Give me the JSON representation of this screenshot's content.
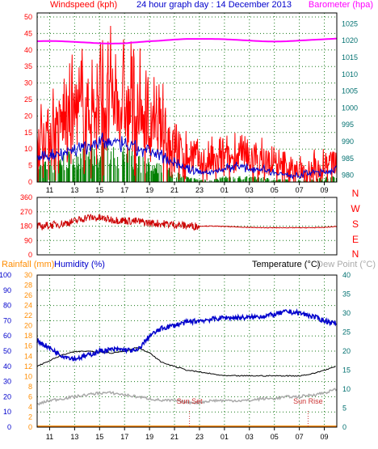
{
  "colors": {
    "bg": "#ffffff",
    "frame": "#000000",
    "grid": "#1a7a1a",
    "wind_speed": "#ff0000",
    "wind_avg": "#0000cc",
    "wind_low": "#008000",
    "barometer": "#ff00ff",
    "direction": "#cc0000",
    "rainfall": "#ff8c00",
    "humidity": "#0000cc",
    "temperature": "#000000",
    "dewpoint": "#aaaaaa",
    "sun_marker": "#cc3333",
    "left_axis_red": "#ff0000",
    "right_axis_magenta": "#ff00ff",
    "teal_axis": "#007070"
  },
  "chart_data": [
    {
      "type": "line",
      "title": "24 hour graph day : 14 December 2013",
      "left_axis_title": "Windspeed (kph)",
      "right_axis_title": "Barometer (hpa)",
      "y_left_ticks": [
        "0",
        "5",
        "10",
        "15",
        "20",
        "25",
        "30",
        "35",
        "40",
        "45",
        "50"
      ],
      "y_right_ticks": [
        "980",
        "985",
        "990",
        "995",
        "1000",
        "1005",
        "1010",
        "1015",
        "1020",
        "1025"
      ],
      "ylim_left": [
        0,
        50
      ],
      "ylim_right": [
        978,
        1027
      ],
      "x_ticks": [
        "11",
        "13",
        "15",
        "17",
        "19",
        "21",
        "23",
        "01",
        "03",
        "05",
        "07",
        "09"
      ],
      "series": [
        {
          "key": "gust",
          "x": [
            10,
            10.5,
            11,
            11.5,
            12,
            12.5,
            13,
            13.5,
            14,
            14.5,
            15,
            15.5,
            16,
            16.5,
            17,
            17.5,
            18,
            18.5,
            19,
            19.5,
            20,
            20.5,
            21,
            21.5,
            22,
            22.5,
            23,
            23.5,
            24,
            24.5,
            25,
            25.5,
            26,
            26.5,
            27,
            27.5,
            28,
            28.5,
            29,
            29.5,
            30,
            30.5,
            31,
            31.5,
            32,
            32.5,
            33,
            33.5,
            34
          ],
          "values": [
            14,
            13,
            16,
            17,
            18,
            18,
            20,
            21,
            22,
            21,
            23,
            24,
            24,
            23,
            22,
            22,
            21,
            19,
            17,
            16,
            15,
            13,
            10,
            9,
            8,
            7,
            6,
            5,
            6,
            6,
            7,
            7,
            8,
            7,
            6,
            7,
            6,
            5,
            5,
            4,
            4,
            3,
            3,
            4,
            5,
            4,
            5,
            6,
            6
          ]
        },
        {
          "key": "avg",
          "x": [
            10,
            11,
            12,
            13,
            14,
            15,
            16,
            17,
            18,
            19,
            20,
            21,
            22,
            23,
            24,
            25,
            26,
            27,
            28,
            29,
            30,
            31,
            32,
            33,
            34
          ],
          "values": [
            7,
            8,
            9,
            10,
            11,
            12,
            12,
            11,
            10,
            9,
            8,
            6,
            4,
            3,
            3,
            4,
            5,
            4,
            4,
            3,
            2,
            2,
            3,
            3,
            4
          ]
        },
        {
          "key": "low",
          "x": [
            10,
            11,
            12,
            13,
            14,
            15,
            16,
            17,
            18,
            19,
            20,
            21,
            22,
            23,
            24,
            25,
            26,
            27,
            28,
            29,
            30,
            31,
            32,
            33,
            34
          ],
          "values": [
            3,
            4,
            5,
            6,
            6,
            7,
            6,
            6,
            5,
            4,
            3,
            2,
            1,
            0.5,
            0.5,
            1,
            1,
            1,
            1,
            0.5,
            0.5,
            0.5,
            0.5,
            1,
            1
          ]
        },
        {
          "key": "barometer",
          "x": [
            10,
            11,
            12,
            13,
            14,
            15,
            16,
            17,
            18,
            19,
            20,
            21,
            22,
            23,
            24,
            25,
            26,
            27,
            28,
            29,
            30,
            31,
            32,
            33,
            34
          ],
          "values": [
            1019.8,
            1019.9,
            1019.8,
            1019.6,
            1019.4,
            1019.2,
            1019.1,
            1019.2,
            1019.5,
            1019.8,
            1020,
            1020.3,
            1020.5,
            1020.5,
            1020.5,
            1020.4,
            1020.2,
            1020,
            1019.8,
            1019.7,
            1019.8,
            1020,
            1020.2,
            1020.4,
            1020.6
          ]
        }
      ]
    },
    {
      "type": "line",
      "right_labels": [
        "N",
        "W",
        "S",
        "E",
        "N"
      ],
      "y_left_ticks": [
        "360",
        "270",
        "180",
        "90",
        "0"
      ],
      "ylim": [
        0,
        360
      ],
      "x_ticks": [
        "11",
        "13",
        "15",
        "17",
        "19",
        "21",
        "23",
        "01",
        "03",
        "05",
        "07",
        "09"
      ],
      "series": [
        {
          "key": "direction",
          "x": [
            10,
            11,
            12,
            13,
            14,
            15,
            16,
            17,
            18,
            19,
            20,
            21,
            22,
            23,
            24,
            25,
            26,
            27,
            28,
            29,
            30,
            31,
            32,
            33,
            34
          ],
          "values": [
            175,
            185,
            195,
            210,
            235,
            230,
            220,
            215,
            210,
            200,
            195,
            190,
            182,
            180,
            180,
            178,
            175,
            172,
            170,
            170,
            170,
            170,
            170,
            172,
            178
          ]
        }
      ]
    },
    {
      "type": "line",
      "rainfall_title": "Rainfall (mm)",
      "humidity_title": "Humidity (%)",
      "temperature_title": "Temperature (°C)",
      "dewpoint_title": "Dew Point (°C)",
      "y_humidity_ticks": [
        "0",
        "10",
        "20",
        "30",
        "40",
        "50",
        "60",
        "70",
        "80",
        "90",
        "100"
      ],
      "y_rain_ticks": [
        "0",
        "2",
        "4",
        "6",
        "8",
        "10",
        "12",
        "14",
        "16",
        "18",
        "20",
        "22",
        "24",
        "26",
        "28",
        "30"
      ],
      "y_temp_ticks": [
        "0",
        "5",
        "10",
        "15",
        "20",
        "25",
        "30",
        "35",
        "40"
      ],
      "ylim_humidity": [
        0,
        100
      ],
      "ylim_temp": [
        0,
        40
      ],
      "x_ticks": [
        "11",
        "13",
        "15",
        "17",
        "19",
        "21",
        "23",
        "01",
        "03",
        "05",
        "07",
        "09"
      ],
      "annotations": {
        "sunset": "Sun Set",
        "sunrise": "Sun Rise",
        "sunset_x": 22.2,
        "sunrise_x": 31.7
      },
      "series": [
        {
          "key": "humidity",
          "x": [
            10,
            11,
            12,
            13,
            14,
            15,
            16,
            17,
            18,
            19,
            20,
            21,
            22,
            23,
            24,
            25,
            26,
            27,
            28,
            29,
            30,
            31,
            32,
            33,
            34
          ],
          "values": [
            57,
            52,
            47,
            45,
            47,
            50,
            51,
            51,
            50,
            60,
            65,
            67,
            69,
            70,
            71,
            72,
            72,
            72,
            73,
            74,
            76,
            75,
            73,
            70,
            68
          ]
        },
        {
          "key": "temperature",
          "x": [
            10,
            11,
            12,
            13,
            14,
            15,
            16,
            17,
            18,
            19,
            20,
            21,
            22,
            23,
            24,
            25,
            26,
            27,
            28,
            29,
            30,
            31,
            32,
            33,
            34
          ],
          "values": [
            16,
            17.5,
            19,
            19.8,
            20,
            19.8,
            19.5,
            20,
            21,
            19.5,
            17,
            16,
            15,
            14.5,
            14,
            13.5,
            13.5,
            13.5,
            13.5,
            13.5,
            13.5,
            13.5,
            14,
            15,
            16
          ]
        },
        {
          "key": "dewpoint",
          "x": [
            10,
            11,
            12,
            13,
            14,
            15,
            16,
            17,
            18,
            19,
            20,
            21,
            22,
            23,
            24,
            25,
            26,
            27,
            28,
            29,
            30,
            31,
            32,
            33,
            34
          ],
          "values": [
            6,
            7,
            7.5,
            8,
            8.5,
            9,
            9,
            8.5,
            8,
            7.5,
            7,
            7,
            6.5,
            6.5,
            7,
            7,
            7,
            7,
            7.5,
            7.5,
            8,
            8,
            8.5,
            9,
            10
          ]
        },
        {
          "key": "rainfall",
          "x": [
            10,
            34
          ],
          "values": [
            0,
            0
          ]
        }
      ]
    }
  ]
}
